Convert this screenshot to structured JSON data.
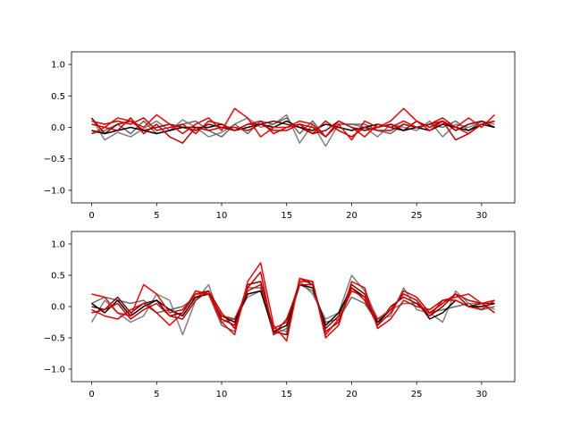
{
  "chart_data": [
    {
      "type": "line",
      "xlim": [
        -1.55,
        32.55
      ],
      "ylim": [
        -1.2,
        1.2
      ],
      "xticks": [
        0,
        5,
        10,
        15,
        20,
        25,
        30
      ],
      "yticks": [
        -1.0,
        -0.5,
        0.0,
        0.5,
        1.0
      ],
      "xtick_labels": [
        "0",
        "5",
        "10",
        "15",
        "20",
        "25",
        "30"
      ],
      "ytick_labels": [
        "−1.0",
        "−0.5",
        "0.0",
        "0.5",
        "1.0"
      ],
      "grid": false,
      "x": [
        0,
        1,
        2,
        3,
        4,
        5,
        6,
        7,
        8,
        9,
        10,
        11,
        12,
        13,
        14,
        15,
        16,
        17,
        18,
        19,
        20,
        21,
        22,
        23,
        24,
        25,
        26,
        27,
        28,
        29,
        30,
        31
      ],
      "series": [
        {
          "color": "#808080",
          "values": [
            0.15,
            -0.2,
            -0.08,
            -0.15,
            -0.02,
            0.1,
            -0.05,
            0.12,
            0.0,
            -0.15,
            -0.08,
            0.05,
            0.15,
            0.0,
            0.05,
            0.2,
            -0.25,
            0.05,
            -0.3,
            0.05,
            0.05,
            0.0,
            -0.15,
            0.05,
            0.0,
            -0.05,
            0.1,
            -0.15,
            0.05,
            0.0,
            0.1,
            0.05
          ]
        },
        {
          "color": "#696969",
          "values": [
            -0.1,
            -0.05,
            0.05,
            -0.1,
            0.1,
            -0.1,
            -0.05,
            0.05,
            0.1,
            -0.05,
            -0.15,
            0.05,
            -0.1,
            0.1,
            0.05,
            0.15,
            -0.1,
            0.1,
            -0.15,
            0.05,
            0.05,
            0.05,
            -0.05,
            -0.1,
            0.05,
            0.0,
            0.05,
            0.0,
            0.1,
            -0.05,
            0.1,
            0.0
          ]
        },
        {
          "color": "#8b0000",
          "values": [
            0.15,
            -0.1,
            0.05,
            0.1,
            -0.05,
            0.0,
            0.05,
            0.0,
            -0.05,
            0.05,
            0.0,
            -0.05,
            0.05,
            0.05,
            0.1,
            0.05,
            0.0,
            -0.1,
            -0.05,
            0.1,
            0.0,
            -0.05,
            0.0,
            0.05,
            -0.05,
            0.1,
            0.0,
            0.1,
            -0.05,
            0.05,
            0.1,
            0.0
          ]
        },
        {
          "color": "#000000",
          "values": [
            -0.05,
            -0.1,
            -0.05,
            0.0,
            -0.05,
            -0.1,
            -0.05,
            0.0,
            0.0,
            0.0,
            0.05,
            -0.05,
            0.0,
            0.05,
            0.0,
            0.1,
            0.0,
            -0.05,
            0.05,
            0.0,
            -0.05,
            0.0,
            0.05,
            0.0,
            -0.05,
            0.0,
            -0.05,
            0.05,
            0.0,
            -0.05,
            0.05,
            0.0
          ]
        },
        {
          "color": "#ff0000",
          "values": [
            -0.1,
            0.0,
            0.15,
            0.1,
            0.0,
            0.2,
            0.05,
            -0.1,
            0.05,
            0.15,
            -0.05,
            0.3,
            0.15,
            -0.15,
            0.0,
            0.0,
            0.1,
            0.05,
            -0.15,
            0.05,
            -0.2,
            0.1,
            0.0,
            0.1,
            0.3,
            0.1,
            -0.05,
            0.1,
            0.0,
            0.15,
            0.0,
            0.2
          ]
        },
        {
          "color": "#e00000",
          "values": [
            0.1,
            0.05,
            0.1,
            0.05,
            0.15,
            -0.05,
            0.0,
            0.05,
            -0.1,
            0.1,
            0.05,
            -0.05,
            0.05,
            0.1,
            -0.1,
            0.0,
            0.05,
            0.0,
            -0.15,
            0.1,
            0.0,
            -0.15,
            0.05,
            0.0,
            0.1,
            0.0,
            0.05,
            0.15,
            0.0,
            -0.1,
            0.05,
            0.1
          ]
        },
        {
          "color": "#cc0000",
          "values": [
            0.05,
            0.0,
            -0.05,
            0.15,
            -0.1,
            0.05,
            -0.15,
            -0.25,
            0.0,
            -0.05,
            0.0,
            0.0,
            -0.05,
            0.05,
            -0.05,
            -0.05,
            0.05,
            -0.1,
            0.1,
            -0.05,
            -0.15,
            0.0,
            -0.05,
            -0.05,
            0.05,
            0.0,
            0.05,
            0.1,
            -0.2,
            -0.1,
            0.05,
            0.1
          ]
        }
      ]
    },
    {
      "type": "line",
      "xlim": [
        -1.55,
        32.55
      ],
      "ylim": [
        -1.2,
        1.2
      ],
      "xticks": [
        0,
        5,
        10,
        15,
        20,
        25,
        30
      ],
      "yticks": [
        -1.0,
        -0.5,
        0.0,
        0.5,
        1.0
      ],
      "xtick_labels": [
        "0",
        "5",
        "10",
        "15",
        "20",
        "25",
        "30"
      ],
      "ytick_labels": [
        "−1.0",
        "−0.5",
        "0.0",
        "0.5",
        "1.0"
      ],
      "grid": false,
      "x": [
        0,
        1,
        2,
        3,
        4,
        5,
        6,
        7,
        8,
        9,
        10,
        11,
        12,
        13,
        14,
        15,
        16,
        17,
        18,
        19,
        20,
        21,
        22,
        23,
        24,
        25,
        26,
        27,
        28,
        29,
        30,
        31
      ],
      "series": [
        {
          "color": "#808080",
          "values": [
            -0.25,
            0.1,
            -0.1,
            -0.25,
            -0.15,
            0.2,
            0.1,
            -0.45,
            0.1,
            0.35,
            -0.25,
            -0.2,
            0.15,
            0.25,
            -0.35,
            -0.4,
            0.4,
            0.2,
            -0.2,
            -0.1,
            0.5,
            0.25,
            -0.2,
            -0.15,
            0.3,
            -0.05,
            -0.1,
            -0.25,
            0.25,
            0.05,
            0.05,
            -0.05
          ]
        },
        {
          "color": "#696969",
          "values": [
            0.05,
            0.15,
            0.1,
            0.05,
            0.1,
            -0.1,
            -0.05,
            0.0,
            0.15,
            0.2,
            -0.3,
            -0.4,
            0.3,
            0.3,
            -0.45,
            -0.35,
            0.35,
            0.25,
            -0.25,
            -0.2,
            0.15,
            0.05,
            -0.25,
            -0.05,
            0.05,
            0.05,
            -0.1,
            -0.05,
            0.0,
            0.05,
            -0.05,
            0.0
          ]
        },
        {
          "color": "#8b0000",
          "values": [
            0.0,
            -0.05,
            0.15,
            -0.1,
            0.05,
            0.1,
            -0.15,
            -0.1,
            0.2,
            0.25,
            -0.2,
            -0.3,
            0.35,
            0.4,
            -0.4,
            -0.45,
            0.45,
            0.35,
            -0.35,
            -0.15,
            0.35,
            0.2,
            -0.3,
            0.0,
            0.15,
            0.05,
            -0.15,
            0.0,
            0.2,
            0.0,
            0.05,
            0.05
          ]
        },
        {
          "color": "#000000",
          "values": [
            0.05,
            -0.1,
            0.1,
            -0.15,
            0.0,
            0.1,
            -0.05,
            -0.15,
            0.15,
            0.2,
            -0.15,
            -0.25,
            0.2,
            0.25,
            -0.4,
            -0.3,
            0.35,
            0.3,
            -0.3,
            -0.1,
            0.3,
            0.15,
            -0.25,
            -0.05,
            0.2,
            0.1,
            -0.2,
            -0.1,
            0.1,
            0.0,
            0.0,
            0.05
          ]
        },
        {
          "color": "#ff0000",
          "values": [
            0.2,
            0.15,
            -0.1,
            -0.15,
            0.35,
            0.2,
            -0.1,
            -0.05,
            0.2,
            0.2,
            -0.25,
            -0.45,
            0.4,
            0.7,
            -0.3,
            -0.55,
            0.45,
            0.4,
            -0.45,
            -0.2,
            0.25,
            0.15,
            -0.2,
            -0.05,
            0.2,
            0.1,
            -0.15,
            0.1,
            0.15,
            0.2,
            0.05,
            0.1
          ]
        },
        {
          "color": "#e00000",
          "values": [
            -0.05,
            -0.15,
            -0.2,
            -0.05,
            0.05,
            -0.1,
            -0.3,
            -0.1,
            0.25,
            0.2,
            -0.15,
            -0.2,
            0.25,
            0.35,
            -0.35,
            -0.25,
            0.4,
            0.4,
            -0.5,
            -0.3,
            0.4,
            0.3,
            -0.35,
            -0.2,
            0.1,
            0.0,
            -0.05,
            0.1,
            0.1,
            0.0,
            -0.05,
            0.1
          ]
        },
        {
          "color": "#cc0000",
          "values": [
            -0.1,
            -0.05,
            0.05,
            -0.2,
            -0.05,
            0.05,
            -0.15,
            -0.2,
            0.1,
            0.25,
            -0.1,
            -0.35,
            0.3,
            0.55,
            -0.45,
            -0.2,
            0.35,
            0.35,
            -0.4,
            -0.25,
            0.3,
            0.1,
            -0.3,
            -0.1,
            0.25,
            0.15,
            -0.1,
            0.05,
            0.2,
            0.1,
            0.05,
            -0.1
          ]
        }
      ]
    }
  ]
}
